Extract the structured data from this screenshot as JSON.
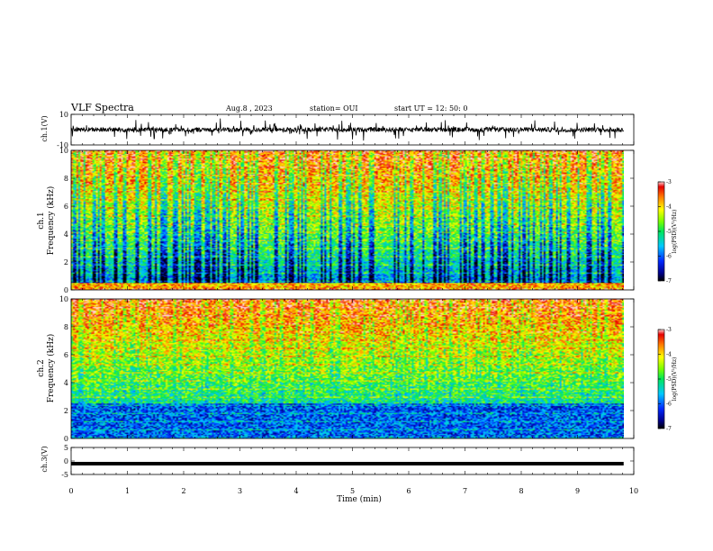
{
  "header": {
    "title": "VLF Spectra",
    "date": "Aug.8 , 2023",
    "station": "station= OUI",
    "start": "start UT = 12: 50: 0"
  },
  "chart_data": [
    {
      "type": "line",
      "name": "ch1-waveform",
      "ylabel": "ch.1(V)",
      "ylim": [
        -10,
        10
      ],
      "yticks": [
        "10",
        "-10"
      ],
      "xlim": [
        0,
        10
      ],
      "baseline": 0,
      "amplitude_typical": 3
    },
    {
      "type": "heatmap",
      "name": "ch1-spectrogram",
      "ylabel": "ch.1",
      "ylabel2": "Frequency (kHz)",
      "ylim": [
        0,
        10
      ],
      "yticks": [
        "0",
        "2",
        "4",
        "6",
        "8",
        "10"
      ],
      "xlim": [
        0,
        10
      ],
      "colorbar": {
        "label": "log(PSD)(V²/Hz)",
        "ticks": [
          "-3",
          "-4",
          "-5",
          "-6",
          "-7"
        ],
        "range": [
          -7,
          -3
        ]
      }
    },
    {
      "type": "heatmap",
      "name": "ch2-spectrogram",
      "ylabel": "ch.2",
      "ylabel2": "Frequency (kHz)",
      "ylim": [
        0,
        10
      ],
      "yticks": [
        "0",
        "2",
        "4",
        "6",
        "8",
        "10"
      ],
      "xlim": [
        0,
        10
      ],
      "colorbar": {
        "label": "log(PSD)(V²/Hz)",
        "ticks": [
          "-3",
          "-4",
          "-5",
          "-6",
          "-7"
        ],
        "range": [
          -7,
          -3
        ]
      }
    },
    {
      "type": "line",
      "name": "ch3-waveform",
      "ylabel": "ch.3(V)",
      "ylim": [
        -5,
        5
      ],
      "yticks": [
        "5",
        "0",
        "-5"
      ],
      "xlim": [
        0,
        10
      ],
      "level": -1
    }
  ],
  "xaxis": {
    "label": "Time (min)",
    "ticks": [
      "0",
      "1",
      "2",
      "3",
      "4",
      "5",
      "6",
      "7",
      "8",
      "9",
      "10"
    ],
    "data_end": 9.82
  }
}
